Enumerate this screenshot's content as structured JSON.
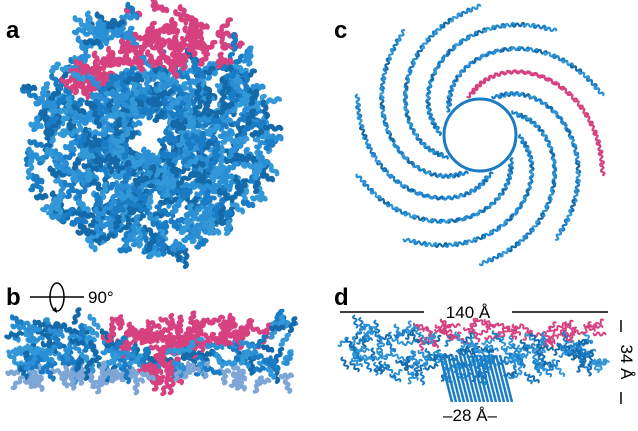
{
  "panels": {
    "a": {
      "label": "a"
    },
    "b": {
      "label": "b",
      "rotation": "90°"
    },
    "c": {
      "label": "c"
    },
    "d": {
      "label": "d",
      "width": "140 Å",
      "height": "34 Å",
      "pore": "–28 Å–"
    }
  }
}
